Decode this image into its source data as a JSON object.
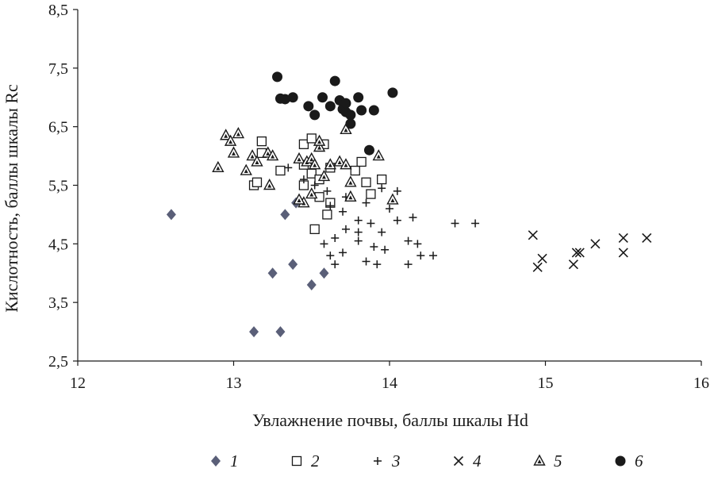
{
  "chart_data": {
    "type": "scatter",
    "title": "",
    "xlabel": "Увлажнение почвы, баллы шкалы Hd",
    "ylabel": "Кислотность, баллы шкалы Rc",
    "xlim": [
      12,
      16
    ],
    "ylim": [
      2.5,
      8.5
    ],
    "x_ticks": [
      "12",
      "13",
      "14",
      "15",
      "16"
    ],
    "y_ticks": [
      "2,5",
      "3,5",
      "4,5",
      "5,5",
      "6,5",
      "7,5",
      "8,5"
    ],
    "grid": false,
    "legend_position": "bottom",
    "series": [
      {
        "name": "1",
        "marker": "diamond",
        "color": "#5a5f78",
        "points": [
          [
            12.6,
            5.0
          ],
          [
            13.33,
            5.0
          ],
          [
            13.4,
            5.2
          ],
          [
            13.25,
            4.0
          ],
          [
            13.38,
            4.15
          ],
          [
            13.58,
            4.0
          ],
          [
            13.5,
            3.8
          ],
          [
            13.13,
            3.0
          ],
          [
            13.3,
            3.0
          ]
        ]
      },
      {
        "name": "2",
        "marker": "square",
        "color": "#1a1a1a",
        "points": [
          [
            13.18,
            6.25
          ],
          [
            13.18,
            6.05
          ],
          [
            13.13,
            5.5
          ],
          [
            13.15,
            5.55
          ],
          [
            13.3,
            5.75
          ],
          [
            13.45,
            6.2
          ],
          [
            13.5,
            6.3
          ],
          [
            13.58,
            6.2
          ],
          [
            13.45,
            5.85
          ],
          [
            13.5,
            5.7
          ],
          [
            13.55,
            5.6
          ],
          [
            13.45,
            5.5
          ],
          [
            13.55,
            5.3
          ],
          [
            13.62,
            5.8
          ],
          [
            13.62,
            5.2
          ],
          [
            13.78,
            5.75
          ],
          [
            13.82,
            5.9
          ],
          [
            13.85,
            5.55
          ],
          [
            13.88,
            5.35
          ],
          [
            13.95,
            5.6
          ],
          [
            13.6,
            5.0
          ],
          [
            13.52,
            4.75
          ]
        ]
      },
      {
        "name": "3",
        "marker": "plus",
        "color": "#1a1a1a",
        "points": [
          [
            13.35,
            5.8
          ],
          [
            13.45,
            5.6
          ],
          [
            13.52,
            5.5
          ],
          [
            13.6,
            5.4
          ],
          [
            13.72,
            5.3
          ],
          [
            13.85,
            5.2
          ],
          [
            13.95,
            5.45
          ],
          [
            14.05,
            5.4
          ],
          [
            14.0,
            5.1
          ],
          [
            13.62,
            5.15
          ],
          [
            13.7,
            5.05
          ],
          [
            13.8,
            4.9
          ],
          [
            13.88,
            4.85
          ],
          [
            13.95,
            4.7
          ],
          [
            14.05,
            4.9
          ],
          [
            14.15,
            4.95
          ],
          [
            13.72,
            4.75
          ],
          [
            13.65,
            4.6
          ],
          [
            13.58,
            4.5
          ],
          [
            13.62,
            4.3
          ],
          [
            13.7,
            4.35
          ],
          [
            13.8,
            4.55
          ],
          [
            13.9,
            4.45
          ],
          [
            13.97,
            4.4
          ],
          [
            14.12,
            4.55
          ],
          [
            14.18,
            4.5
          ],
          [
            14.2,
            4.3
          ],
          [
            14.28,
            4.3
          ],
          [
            14.12,
            4.15
          ],
          [
            13.85,
            4.2
          ],
          [
            13.92,
            4.15
          ],
          [
            13.65,
            4.15
          ],
          [
            14.42,
            4.85
          ],
          [
            14.55,
            4.85
          ],
          [
            13.8,
            4.7
          ]
        ]
      },
      {
        "name": "4",
        "marker": "x",
        "color": "#1a1a1a",
        "points": [
          [
            14.92,
            4.65
          ],
          [
            14.95,
            4.1
          ],
          [
            14.98,
            4.25
          ],
          [
            15.18,
            4.15
          ],
          [
            15.2,
            4.35
          ],
          [
            15.22,
            4.35
          ],
          [
            15.32,
            4.5
          ],
          [
            15.5,
            4.6
          ],
          [
            15.5,
            4.35
          ],
          [
            15.65,
            4.6
          ]
        ]
      },
      {
        "name": "5",
        "marker": "triangle",
        "color": "#1a1a1a",
        "points": [
          [
            12.9,
            5.8
          ],
          [
            12.95,
            6.35
          ],
          [
            12.98,
            6.25
          ],
          [
            13.03,
            6.38
          ],
          [
            13.0,
            6.05
          ],
          [
            13.08,
            5.75
          ],
          [
            13.12,
            6.0
          ],
          [
            13.15,
            5.9
          ],
          [
            13.22,
            6.05
          ],
          [
            13.25,
            6.0
          ],
          [
            13.23,
            5.5
          ],
          [
            13.42,
            5.95
          ],
          [
            13.47,
            5.9
          ],
          [
            13.5,
            5.95
          ],
          [
            13.55,
            6.15
          ],
          [
            13.52,
            5.85
          ],
          [
            13.58,
            5.65
          ],
          [
            13.62,
            5.85
          ],
          [
            13.68,
            5.9
          ],
          [
            13.72,
            5.85
          ],
          [
            13.75,
            5.55
          ],
          [
            13.72,
            6.45
          ],
          [
            13.5,
            5.35
          ],
          [
            13.45,
            5.2
          ],
          [
            13.42,
            5.25
          ],
          [
            13.75,
            5.3
          ],
          [
            13.93,
            6.0
          ],
          [
            14.02,
            5.25
          ],
          [
            13.55,
            6.25
          ]
        ]
      },
      {
        "name": "6",
        "marker": "circle",
        "color": "#1a1a1a",
        "points": [
          [
            13.28,
            7.35
          ],
          [
            13.3,
            6.98
          ],
          [
            13.33,
            6.97
          ],
          [
            13.38,
            7.0
          ],
          [
            13.48,
            6.85
          ],
          [
            13.52,
            6.7
          ],
          [
            13.57,
            7.0
          ],
          [
            13.62,
            6.85
          ],
          [
            13.65,
            7.28
          ],
          [
            13.68,
            6.95
          ],
          [
            13.7,
            6.8
          ],
          [
            13.72,
            6.75
          ],
          [
            13.75,
            6.7
          ],
          [
            13.75,
            6.55
          ],
          [
            13.72,
            6.9
          ],
          [
            13.8,
            7.0
          ],
          [
            13.82,
            6.78
          ],
          [
            13.9,
            6.78
          ],
          [
            14.02,
            7.08
          ],
          [
            13.87,
            6.1
          ]
        ]
      }
    ]
  }
}
